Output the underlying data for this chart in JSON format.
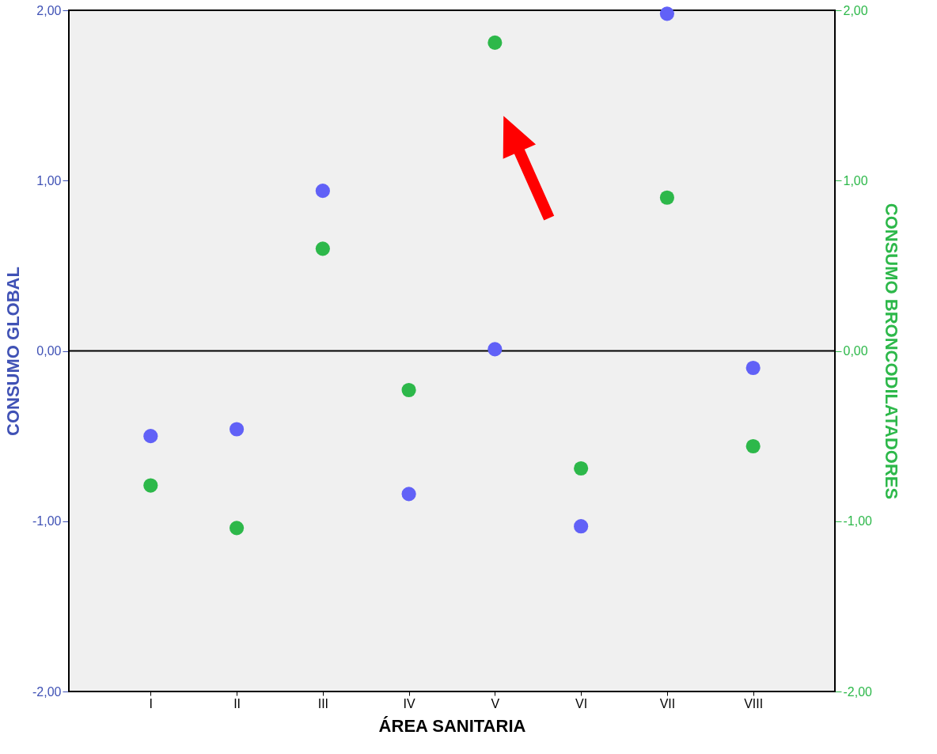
{
  "chart_data": {
    "type": "scatter",
    "xlabel": "ÁREA SANITARIA",
    "ylabel": "CONSUMO GLOBAL",
    "y2label": "CONSUMO BRONCODILATADORES",
    "categories": [
      "I",
      "II",
      "III",
      "IV",
      "V",
      "VI",
      "VII",
      "VIII"
    ],
    "series": [
      {
        "color": "#6161f7",
        "values": [
          -0.5,
          -0.46,
          0.94,
          -0.84,
          0.01,
          -1.03,
          1.98,
          -0.1
        ]
      },
      {
        "color": "#2db84a",
        "axis": "y2",
        "values": [
          -0.79,
          -1.04,
          0.6,
          -0.23,
          1.81,
          -0.69,
          0.9,
          -0.56
        ]
      }
    ],
    "ylim": [
      -2,
      2
    ],
    "yticks": [
      {
        "value": -2,
        "label": "-2,00"
      },
      {
        "value": -1,
        "label": "-1,00"
      },
      {
        "value": 0,
        "label": "0,00"
      },
      {
        "value": 1,
        "label": "1,00"
      },
      {
        "value": 2,
        "label": "2,00"
      }
    ],
    "y2lim": [
      -2,
      2
    ],
    "y2ticks": [
      {
        "value": -2,
        "label": "-2,00"
      },
      {
        "value": -1,
        "label": "-1,00"
      },
      {
        "value": 0,
        "label": "0,00"
      },
      {
        "value": 1,
        "label": "1,00"
      },
      {
        "value": 2,
        "label": "2,00"
      }
    ],
    "ref_lines": [
      {
        "axis": "y",
        "value": 0,
        "color": "#000000"
      }
    ],
    "marker": "circle",
    "legend": false
  }
}
